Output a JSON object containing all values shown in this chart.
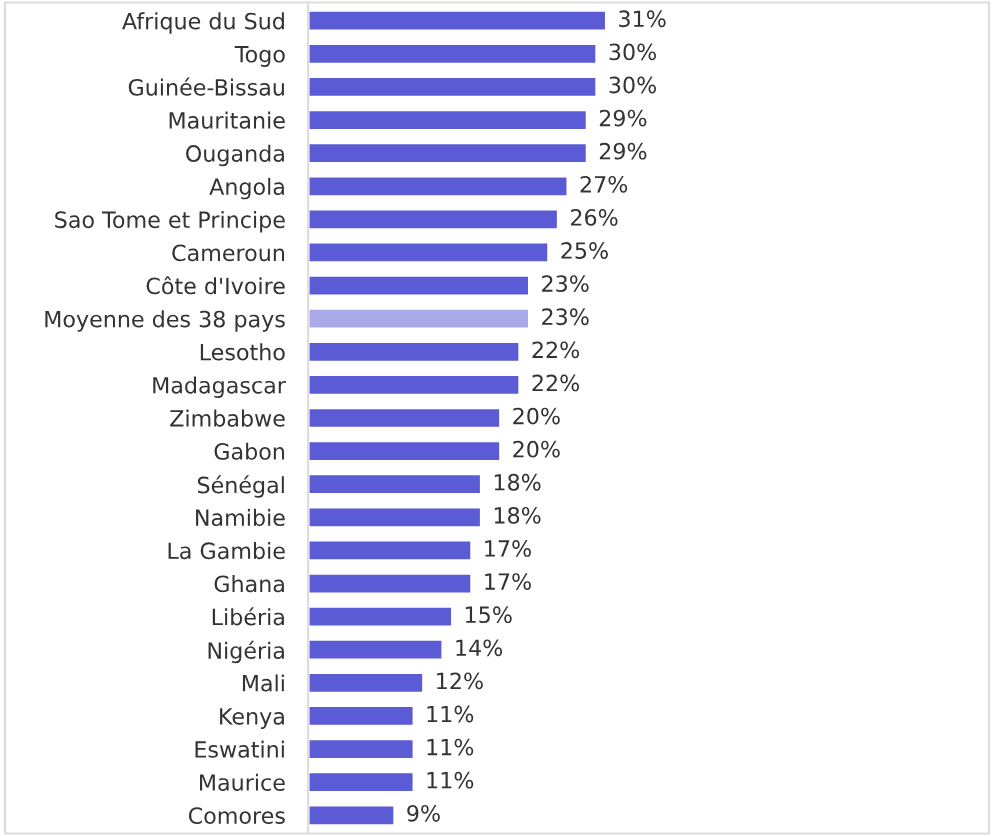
{
  "chart_data": {
    "type": "bar",
    "orientation": "horizontal",
    "categories": [
      "Afrique du Sud",
      "Togo",
      "Guinée-Bissau",
      "Mauritanie",
      "Ouganda",
      "Angola",
      "Sao Tome et Principe",
      "Cameroun",
      "Côte d'Ivoire",
      "Moyenne des 38 pays",
      "Lesotho",
      "Madagascar",
      "Zimbabwe",
      "Gabon",
      "Sénégal",
      "Namibie",
      "La Gambie",
      "Ghana",
      "Libéria",
      "Nigéria",
      "Mali",
      "Kenya",
      "Eswatini",
      "Maurice",
      "Comores"
    ],
    "values": [
      31,
      30,
      30,
      29,
      29,
      27,
      26,
      25,
      23,
      23,
      22,
      22,
      20,
      20,
      18,
      18,
      17,
      17,
      15,
      14,
      12,
      11,
      11,
      11,
      9
    ],
    "value_labels": [
      "31%",
      "30%",
      "30%",
      "29%",
      "29%",
      "27%",
      "26%",
      "25%",
      "23%",
      "23%",
      "22%",
      "22%",
      "20%",
      "20%",
      "18%",
      "18%",
      "17%",
      "17%",
      "15%",
      "14%",
      "12%",
      "11%",
      "11%",
      "11%",
      "9%"
    ],
    "colors": [
      "#5b5bd6",
      "#5b5bd6",
      "#5b5bd6",
      "#5b5bd6",
      "#5b5bd6",
      "#5b5bd6",
      "#5b5bd6",
      "#5b5bd6",
      "#5b5bd6",
      "#a9a9e8",
      "#5b5bd6",
      "#5b5bd6",
      "#5b5bd6",
      "#5b5bd6",
      "#5b5bd6",
      "#5b5bd6",
      "#5b5bd6",
      "#5b5bd6",
      "#5b5bd6",
      "#5b5bd6",
      "#5b5bd6",
      "#5b5bd6",
      "#5b5bd6",
      "#5b5bd6",
      "#5b5bd6"
    ]
  }
}
